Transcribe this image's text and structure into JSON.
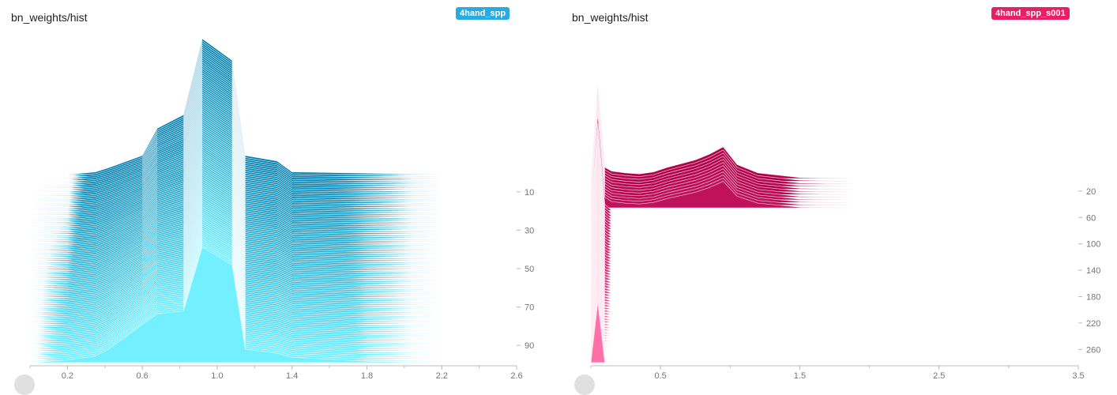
{
  "panels": [
    {
      "title": "bn_weights/hist",
      "run_label": "4hand_spp",
      "run_color": "#29abe2",
      "fill_back": "#007fae",
      "fill_front": "#72f0ff"
    },
    {
      "title": "bn_weights/hist",
      "run_label": "4hand_spp_s001",
      "run_color": "#e91e63",
      "fill_back": "#b3004b",
      "fill_front": "#ff6fa8"
    }
  ],
  "chart_data": [
    {
      "type": "area",
      "subtype": "tensorboard-histogram-offset",
      "title": "bn_weights/hist",
      "run": "4hand_spp",
      "xlabel": "",
      "ylabel": "",
      "x_ticks": [
        "0.2",
        "0.6",
        "1.0",
        "1.4",
        "1.8",
        "2.2",
        "2.6"
      ],
      "step_ticks": [
        "10",
        "30",
        "50",
        "70",
        "90"
      ],
      "xlim": [
        0.0,
        2.6
      ],
      "step_range": [
        1,
        99
      ],
      "num_slices": 99,
      "bins_x": [
        0.0,
        0.2,
        0.35,
        0.42,
        0.6,
        0.68,
        0.82,
        0.92,
        1.08,
        1.15,
        1.32,
        1.4,
        1.8,
        2.2,
        2.6
      ],
      "bins_start": [
        0.0,
        0.0,
        0.02,
        0.05,
        0.14,
        0.34,
        0.44,
        1.0,
        0.84,
        0.14,
        0.1,
        0.02,
        0.01,
        0.0,
        0.0
      ],
      "bins_end": [
        0.0,
        0.02,
        0.05,
        0.1,
        0.28,
        0.36,
        0.38,
        0.85,
        0.72,
        0.1,
        0.07,
        0.04,
        0.01,
        0.0,
        0.0
      ]
    },
    {
      "type": "area",
      "subtype": "tensorboard-histogram-offset",
      "title": "bn_weights/hist",
      "run": "4hand_spp_s001",
      "xlabel": "",
      "ylabel": "",
      "x_ticks": [
        "0.5",
        "1.5",
        "2.5",
        "3.5"
      ],
      "step_ticks": [
        "20",
        "60",
        "100",
        "140",
        "180",
        "220",
        "260"
      ],
      "xlim": [
        0.0,
        3.5
      ],
      "step_range": [
        1,
        280
      ],
      "num_slices": 70,
      "bins_x": [
        0.0,
        0.05,
        0.1,
        0.15,
        0.25,
        0.35,
        0.45,
        0.55,
        0.65,
        0.75,
        0.85,
        0.95,
        1.05,
        1.2,
        1.5,
        1.9,
        2.5,
        3.5
      ],
      "bins_start": [
        0.0,
        1.0,
        0.12,
        0.08,
        0.06,
        0.05,
        0.07,
        0.12,
        0.16,
        0.2,
        0.26,
        0.34,
        0.15,
        0.06,
        0.01,
        0.0,
        0.0,
        0.0
      ],
      "bins_end": [
        0.0,
        1.0,
        0.1,
        0.0,
        0.0,
        0.0,
        0.0,
        0.0,
        0.0,
        0.0,
        0.0,
        0.0,
        0.0,
        0.0,
        0.0,
        0.0,
        0.0,
        0.0
      ]
    }
  ]
}
